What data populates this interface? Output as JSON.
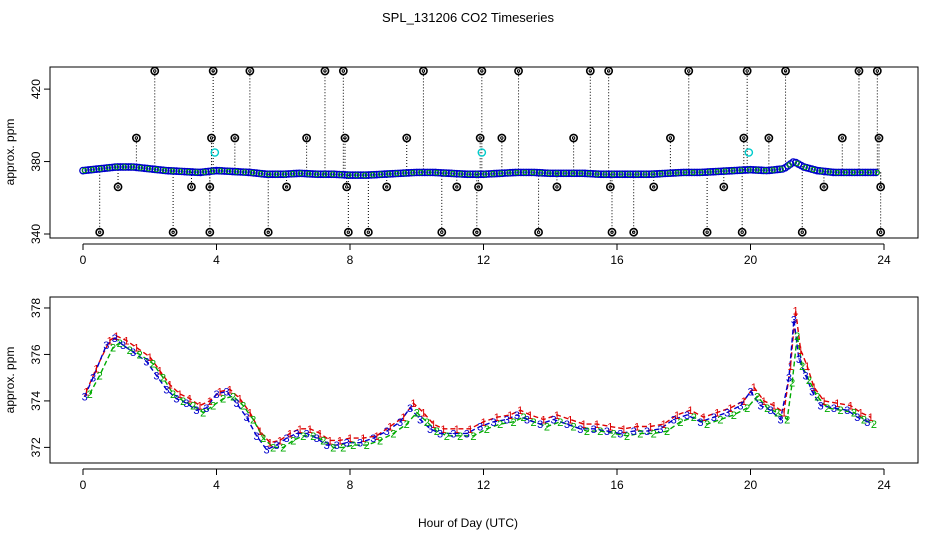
{
  "chart_data": [
    {
      "type": "scatter",
      "title": "SPL_131206  CO2 Timeseries",
      "xlabel": "",
      "ylabel": "approx. ppm",
      "xlim": [
        0,
        24
      ],
      "ylim": [
        340,
        430
      ],
      "xticks": [
        0,
        4,
        8,
        12,
        16,
        20,
        24
      ],
      "yticks": [
        340,
        380,
        420
      ],
      "ytick_labels": [
        "340",
        "380",
        "420"
      ],
      "baseline": {
        "color": "#0000cc",
        "x": [
          0.0,
          0.5,
          1.0,
          1.5,
          2.0,
          2.5,
          3.0,
          3.5,
          4.0,
          4.5,
          5.0,
          5.5,
          6.0,
          6.5,
          7.0,
          7.5,
          8.0,
          8.5,
          9.0,
          9.5,
          10.0,
          10.5,
          11.0,
          11.5,
          12.0,
          12.5,
          13.0,
          13.5,
          14.0,
          14.5,
          15.0,
          15.5,
          16.0,
          16.5,
          17.0,
          17.5,
          18.0,
          18.5,
          19.0,
          19.5,
          20.0,
          20.5,
          21.0,
          21.3,
          21.6,
          22.0,
          22.5,
          23.0,
          23.5,
          23.8
        ],
        "y": [
          375,
          376,
          377,
          377,
          376,
          375,
          374.5,
          374,
          375,
          374.5,
          374,
          373,
          373,
          373.5,
          373,
          373,
          372.5,
          372.5,
          373,
          373.5,
          374,
          374,
          373.5,
          373,
          373,
          373.5,
          374,
          374,
          373.5,
          373.5,
          373.5,
          373,
          373,
          373,
          373,
          373.5,
          374,
          374,
          374.5,
          375,
          375.5,
          375,
          376,
          380,
          377,
          375,
          374,
          374,
          374,
          374
        ]
      },
      "outliers_high": {
        "color": "#000000",
        "y": 430,
        "x": [
          2.15,
          3.9,
          5.0,
          7.25,
          7.8,
          10.2,
          11.95,
          13.05,
          15.2,
          15.75,
          18.15,
          19.9,
          21.05,
          23.25,
          23.8
        ]
      },
      "outliers_mid": {
        "color": "#000000",
        "y": 393,
        "x": [
          1.6,
          3.85,
          4.55,
          6.7,
          7.85,
          9.7,
          11.9,
          12.55,
          14.7,
          17.6,
          19.8,
          20.55,
          22.75,
          23.85
        ]
      },
      "outliers_low": {
        "color": "#000000",
        "y": 341,
        "x": [
          0.5,
          2.7,
          3.8,
          5.55,
          7.95,
          8.55,
          10.75,
          11.8,
          13.65,
          15.85,
          16.5,
          18.7,
          19.75,
          21.55,
          23.9
        ]
      },
      "outliers_small": {
        "color": "#000000",
        "y": 366,
        "x": [
          1.05,
          3.25,
          3.8,
          6.1,
          7.9,
          9.1,
          11.2,
          11.85,
          14.2,
          15.8,
          17.1,
          19.2,
          22.2,
          23.9
        ]
      },
      "cyan_points": {
        "color": "#00cccc",
        "y": 385,
        "x": [
          3.95,
          11.95,
          19.95
        ]
      }
    },
    {
      "type": "scatter",
      "title": "",
      "xlabel": "Hour of Day (UTC)",
      "ylabel": "approx. ppm",
      "xlim": [
        0,
        24
      ],
      "ylim": [
        371.5,
        378.3
      ],
      "xticks": [
        0,
        4,
        8,
        12,
        16,
        20,
        24
      ],
      "yticks": [
        372,
        374,
        376,
        378
      ],
      "ytick_labels": [
        "372",
        "374",
        "376",
        "378"
      ],
      "series": [
        {
          "name": "1",
          "color": "#dd0000",
          "x": [
            0.1,
            0.4,
            0.8,
            1.0,
            1.3,
            1.6,
            2.0,
            2.3,
            2.6,
            2.9,
            3.2,
            3.5,
            3.8,
            4.1,
            4.4,
            4.7,
            5.0,
            5.3,
            5.6,
            5.9,
            6.2,
            6.5,
            6.8,
            7.1,
            7.4,
            7.7,
            8.0,
            8.4,
            8.8,
            9.2,
            9.6,
            9.9,
            10.2,
            10.5,
            10.8,
            11.2,
            11.6,
            12.0,
            12.4,
            12.8,
            13.1,
            13.4,
            13.8,
            14.2,
            14.6,
            15.0,
            15.4,
            15.8,
            16.2,
            16.6,
            17.0,
            17.4,
            17.8,
            18.2,
            18.6,
            19.0,
            19.4,
            19.8,
            20.1,
            20.4,
            20.7,
            21.0,
            21.2,
            21.35,
            21.5,
            21.7,
            21.9,
            22.2,
            22.6,
            23.0,
            23.3,
            23.6
          ],
          "y": [
            374.4,
            375.4,
            376.6,
            376.8,
            376.6,
            376.3,
            375.9,
            375.3,
            374.7,
            374.3,
            374.1,
            373.8,
            374.0,
            374.4,
            374.5,
            374.1,
            373.5,
            372.7,
            372.2,
            372.3,
            372.6,
            372.8,
            372.8,
            372.6,
            372.3,
            372.3,
            372.4,
            372.4,
            372.5,
            372.9,
            373.3,
            373.9,
            373.5,
            373.0,
            372.8,
            372.8,
            372.8,
            373.1,
            373.3,
            373.4,
            373.6,
            373.4,
            373.2,
            373.4,
            373.2,
            373.0,
            373.0,
            372.9,
            372.8,
            372.9,
            372.9,
            373.0,
            373.4,
            373.6,
            373.3,
            373.5,
            373.7,
            374.0,
            374.6,
            374.0,
            373.8,
            373.5,
            375.5,
            377.9,
            376.2,
            375.5,
            374.6,
            374.0,
            373.9,
            373.8,
            373.5,
            373.3
          ]
        },
        {
          "name": "2",
          "color": "#00aa00",
          "x": [
            0.2,
            0.5,
            0.9,
            1.1,
            1.4,
            1.7,
            2.1,
            2.4,
            2.7,
            3.0,
            3.3,
            3.6,
            3.9,
            4.2,
            4.5,
            4.8,
            5.1,
            5.4,
            5.7,
            6.0,
            6.3,
            6.6,
            6.9,
            7.2,
            7.5,
            7.8,
            8.1,
            8.5,
            8.9,
            9.3,
            9.7,
            10.0,
            10.3,
            10.6,
            10.9,
            11.3,
            11.7,
            12.1,
            12.5,
            12.9,
            13.2,
            13.5,
            13.9,
            14.3,
            14.7,
            15.1,
            15.5,
            15.9,
            16.3,
            16.7,
            17.1,
            17.5,
            17.9,
            18.3,
            18.7,
            19.1,
            19.5,
            19.9,
            20.2,
            20.5,
            20.8,
            21.1,
            21.25,
            21.4,
            21.55,
            21.75,
            22.0,
            22.3,
            22.7,
            23.1,
            23.4,
            23.7
          ],
          "y": [
            374.3,
            375.1,
            376.3,
            376.5,
            376.2,
            376.0,
            375.6,
            375.0,
            374.3,
            374.0,
            373.8,
            373.5,
            373.8,
            374.1,
            374.2,
            373.8,
            373.2,
            372.4,
            372.0,
            372.0,
            372.3,
            372.5,
            372.5,
            372.3,
            372.0,
            372.0,
            372.1,
            372.1,
            372.3,
            372.6,
            373.0,
            373.5,
            373.1,
            372.7,
            372.5,
            372.5,
            372.5,
            372.8,
            373.0,
            373.1,
            373.3,
            373.1,
            372.9,
            373.1,
            372.9,
            372.7,
            372.7,
            372.6,
            372.5,
            372.6,
            372.6,
            372.7,
            373.1,
            373.3,
            373.0,
            373.2,
            373.4,
            373.7,
            374.2,
            373.7,
            373.5,
            373.2,
            374.8,
            376.8,
            375.5,
            374.9,
            374.2,
            373.7,
            373.6,
            373.5,
            373.2,
            373.0
          ]
        },
        {
          "name": "3",
          "color": "#0000cc",
          "x": [
            0.05,
            0.3,
            0.7,
            0.95,
            1.2,
            1.5,
            1.9,
            2.2,
            2.5,
            2.8,
            3.1,
            3.4,
            3.7,
            4.0,
            4.3,
            4.6,
            4.9,
            5.2,
            5.5,
            5.8,
            6.1,
            6.4,
            6.7,
            7.0,
            7.3,
            7.6,
            7.9,
            8.3,
            8.7,
            9.1,
            9.5,
            9.8,
            10.1,
            10.4,
            10.7,
            11.1,
            11.5,
            11.9,
            12.3,
            12.7,
            13.0,
            13.3,
            13.7,
            14.1,
            14.5,
            14.9,
            15.3,
            15.7,
            16.1,
            16.5,
            16.9,
            17.3,
            17.7,
            18.1,
            18.5,
            18.9,
            19.3,
            19.7,
            20.0,
            20.3,
            20.6,
            20.9,
            21.15,
            21.3,
            21.45,
            21.65,
            21.85,
            22.1,
            22.5,
            22.9,
            23.2,
            23.5
          ],
          "y": [
            374.2,
            375.0,
            376.4,
            376.7,
            376.4,
            376.1,
            375.7,
            375.1,
            374.5,
            374.1,
            373.9,
            373.6,
            373.7,
            374.3,
            374.4,
            373.9,
            373.3,
            372.5,
            371.9,
            372.1,
            372.4,
            372.6,
            372.6,
            372.4,
            372.1,
            372.1,
            372.2,
            372.2,
            372.4,
            372.7,
            373.1,
            373.7,
            373.2,
            372.8,
            372.6,
            372.6,
            372.6,
            372.9,
            373.1,
            373.2,
            373.4,
            373.2,
            373.0,
            373.2,
            373.0,
            372.8,
            372.8,
            372.7,
            372.6,
            372.7,
            372.7,
            372.8,
            373.2,
            373.4,
            373.1,
            373.3,
            373.5,
            373.8,
            374.4,
            373.8,
            373.6,
            373.2,
            375.0,
            377.5,
            375.8,
            375.1,
            374.4,
            373.8,
            373.7,
            373.6,
            373.3,
            373.1
          ]
        }
      ]
    }
  ]
}
